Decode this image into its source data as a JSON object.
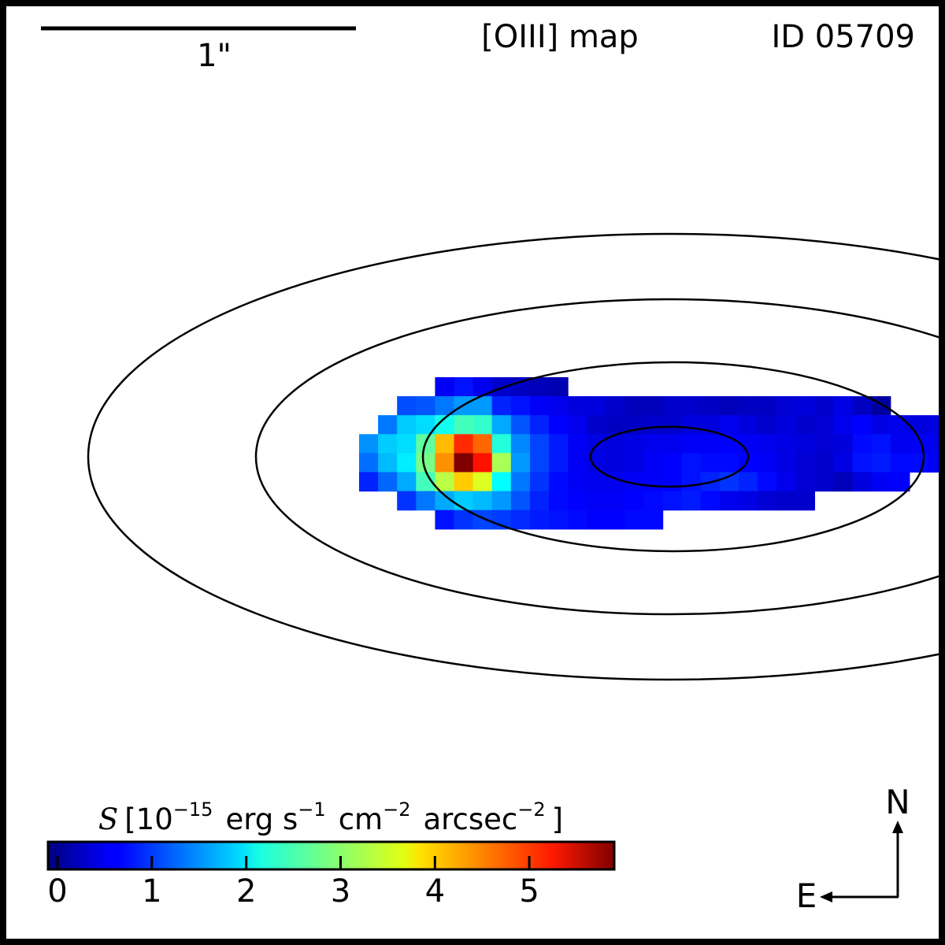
{
  "chart_data": {
    "type": "heatmap",
    "title": "[OIII] map",
    "object_id": "ID 05709",
    "scale_bar_label": "1\"",
    "colorbar": {
      "label_symbol": "S",
      "label_open": "[10",
      "label_exp1": "−15",
      "label_erg": "erg s",
      "label_exp2": "−1",
      "label_cm": "cm",
      "label_exp3": "−2",
      "label_arcsec": "arcsec",
      "label_exp4": "−2",
      "label_close": "]",
      "vmin": -0.1,
      "vmax": 5.9,
      "ticks": [
        0,
        1,
        2,
        3,
        4,
        5
      ],
      "tick_labels": [
        "0",
        "1",
        "2",
        "3",
        "4",
        "5"
      ],
      "colormap": "jet"
    },
    "compass": {
      "north": "N",
      "east": "E"
    },
    "grid": {
      "col0": 0,
      "row0": 0,
      "rows": [
        {
          "start": 4,
          "values": [
            0.6,
            0.75,
            0.55,
            0.35,
            0.3,
            0.25,
            0.2
          ]
        },
        {
          "start": 2,
          "values": [
            1.1,
            1.15,
            1.35,
            1.55,
            1.55,
            0.85,
            0.75,
            0.6,
            0.55,
            0.45,
            0.45,
            0.35,
            0.25,
            0.25,
            0.35,
            0.35,
            0.3,
            0.25,
            0.3,
            0.3,
            0.4,
            0.45,
            0.35,
            0.5,
            0.3,
            0.1
          ]
        },
        {
          "start": 1,
          "values": [
            1.35,
            1.85,
            1.95,
            2.25,
            2.55,
            2.45,
            1.65,
            1.15,
            0.85,
            0.65,
            0.55,
            0.35,
            0.3,
            0.3,
            0.35,
            0.35,
            0.45,
            0.45,
            0.55,
            0.45,
            0.35,
            0.45,
            0.35,
            0.4,
            0.55,
            0.65,
            0.5,
            0.55,
            0.45,
            0.5
          ]
        },
        {
          "start": 0,
          "values": [
            1.5,
            1.85,
            1.95,
            2.7,
            4.05,
            4.9,
            4.55,
            2.35,
            1.45,
            1.05,
            0.8,
            0.6,
            0.5,
            0.45,
            0.5,
            0.55,
            0.55,
            0.6,
            0.6,
            0.65,
            0.6,
            0.55,
            0.5,
            0.45,
            0.4,
            0.45,
            0.7,
            0.75,
            0.55,
            0.6,
            0.55,
            0.45
          ]
        },
        {
          "start": 0,
          "values": [
            1.3,
            1.75,
            2.05,
            2.85,
            4.3,
            5.9,
            5.05,
            3.15,
            1.55,
            1.05,
            0.8,
            0.6,
            0.5,
            0.45,
            0.5,
            0.6,
            0.65,
            0.75,
            0.7,
            0.7,
            0.65,
            0.6,
            0.5,
            0.4,
            0.35,
            0.5,
            0.75,
            0.8,
            0.7,
            0.7,
            0.6,
            0.35
          ]
        },
        {
          "start": 0,
          "values": [
            0.85,
            1.25,
            1.65,
            2.55,
            3.25,
            3.95,
            3.45,
            2.15,
            1.35,
            0.95,
            0.7,
            0.6,
            0.55,
            0.55,
            0.6,
            0.6,
            0.65,
            0.75,
            0.85,
            0.95,
            0.85,
            0.7,
            0.55,
            0.4,
            0.35,
            0.25,
            0.45,
            0.6,
            0.65
          ]
        },
        {
          "start": 2,
          "values": [
            0.95,
            1.35,
            1.65,
            1.85,
            1.75,
            1.55,
            1.15,
            0.85,
            0.7,
            0.65,
            0.6,
            0.6,
            0.65,
            0.7,
            0.75,
            0.8,
            0.7,
            0.55,
            0.5,
            0.4,
            0.35,
            0.35
          ]
        },
        {
          "start": 4,
          "values": [
            0.75,
            0.95,
            1.05,
            1.0,
            0.9,
            0.8,
            0.75,
            0.7,
            0.65,
            0.65,
            0.7,
            0.7
          ]
        }
      ]
    },
    "contours": [
      {
        "cx": 850,
        "cy": 580,
        "rx": 100,
        "ry": 38
      },
      {
        "cx": 855,
        "cy": 580,
        "rx": 318,
        "ry": 120
      },
      {
        "cx": 850,
        "cy": 580,
        "rx": 525,
        "ry": 200
      },
      {
        "cx": 850,
        "cy": 580,
        "rx": 738,
        "ry": 283
      }
    ]
  }
}
